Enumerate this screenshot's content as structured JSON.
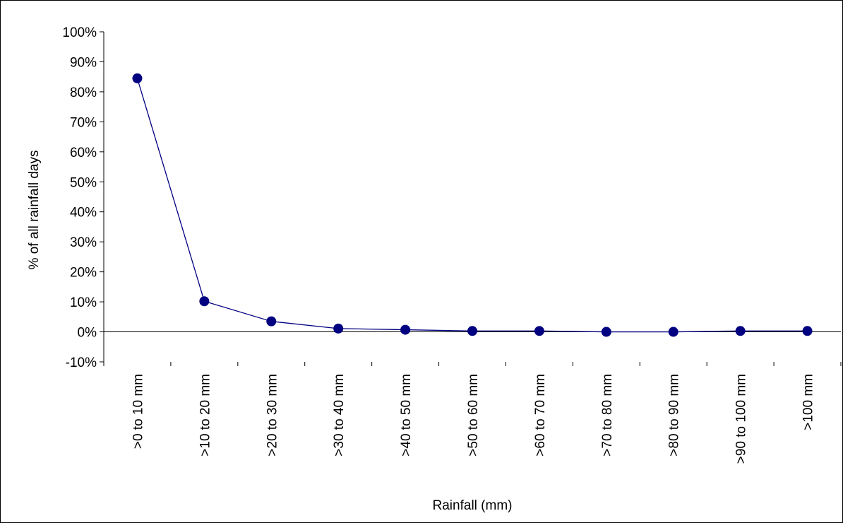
{
  "chart_data": {
    "type": "line",
    "title": "",
    "xlabel": "Rainfall (mm)",
    "ylabel": "% of all rainfall days",
    "categories": [
      ">0 to 10 mm",
      ">10 to 20 mm",
      ">20 to 30 mm",
      ">30 to 40 mm",
      ">40 to 50 mm",
      ">50 to 60 mm",
      ">60 to 70 mm",
      ">70 to 80 mm",
      ">80 to 90 mm",
      ">90 to 100 mm",
      ">100 mm"
    ],
    "series": [
      {
        "values": [
          84.5,
          10.2,
          3.5,
          1.1,
          0.7,
          0.3,
          0.3,
          0.0,
          0.0,
          0.3,
          0.3
        ]
      }
    ],
    "ylim": [
      -10,
      100
    ],
    "y_ticks": [
      -10,
      0,
      10,
      20,
      30,
      40,
      50,
      60,
      70,
      80,
      90,
      100
    ],
    "y_tick_labels": [
      "-10%",
      "0%",
      "10%",
      "20%",
      "30%",
      "40%",
      "50%",
      "60%",
      "70%",
      "80%",
      "90%",
      "100%"
    ],
    "grid": false,
    "legend": "none",
    "colors": {
      "series": "#000080",
      "axis": "#000000",
      "background": "#ffffff"
    }
  }
}
